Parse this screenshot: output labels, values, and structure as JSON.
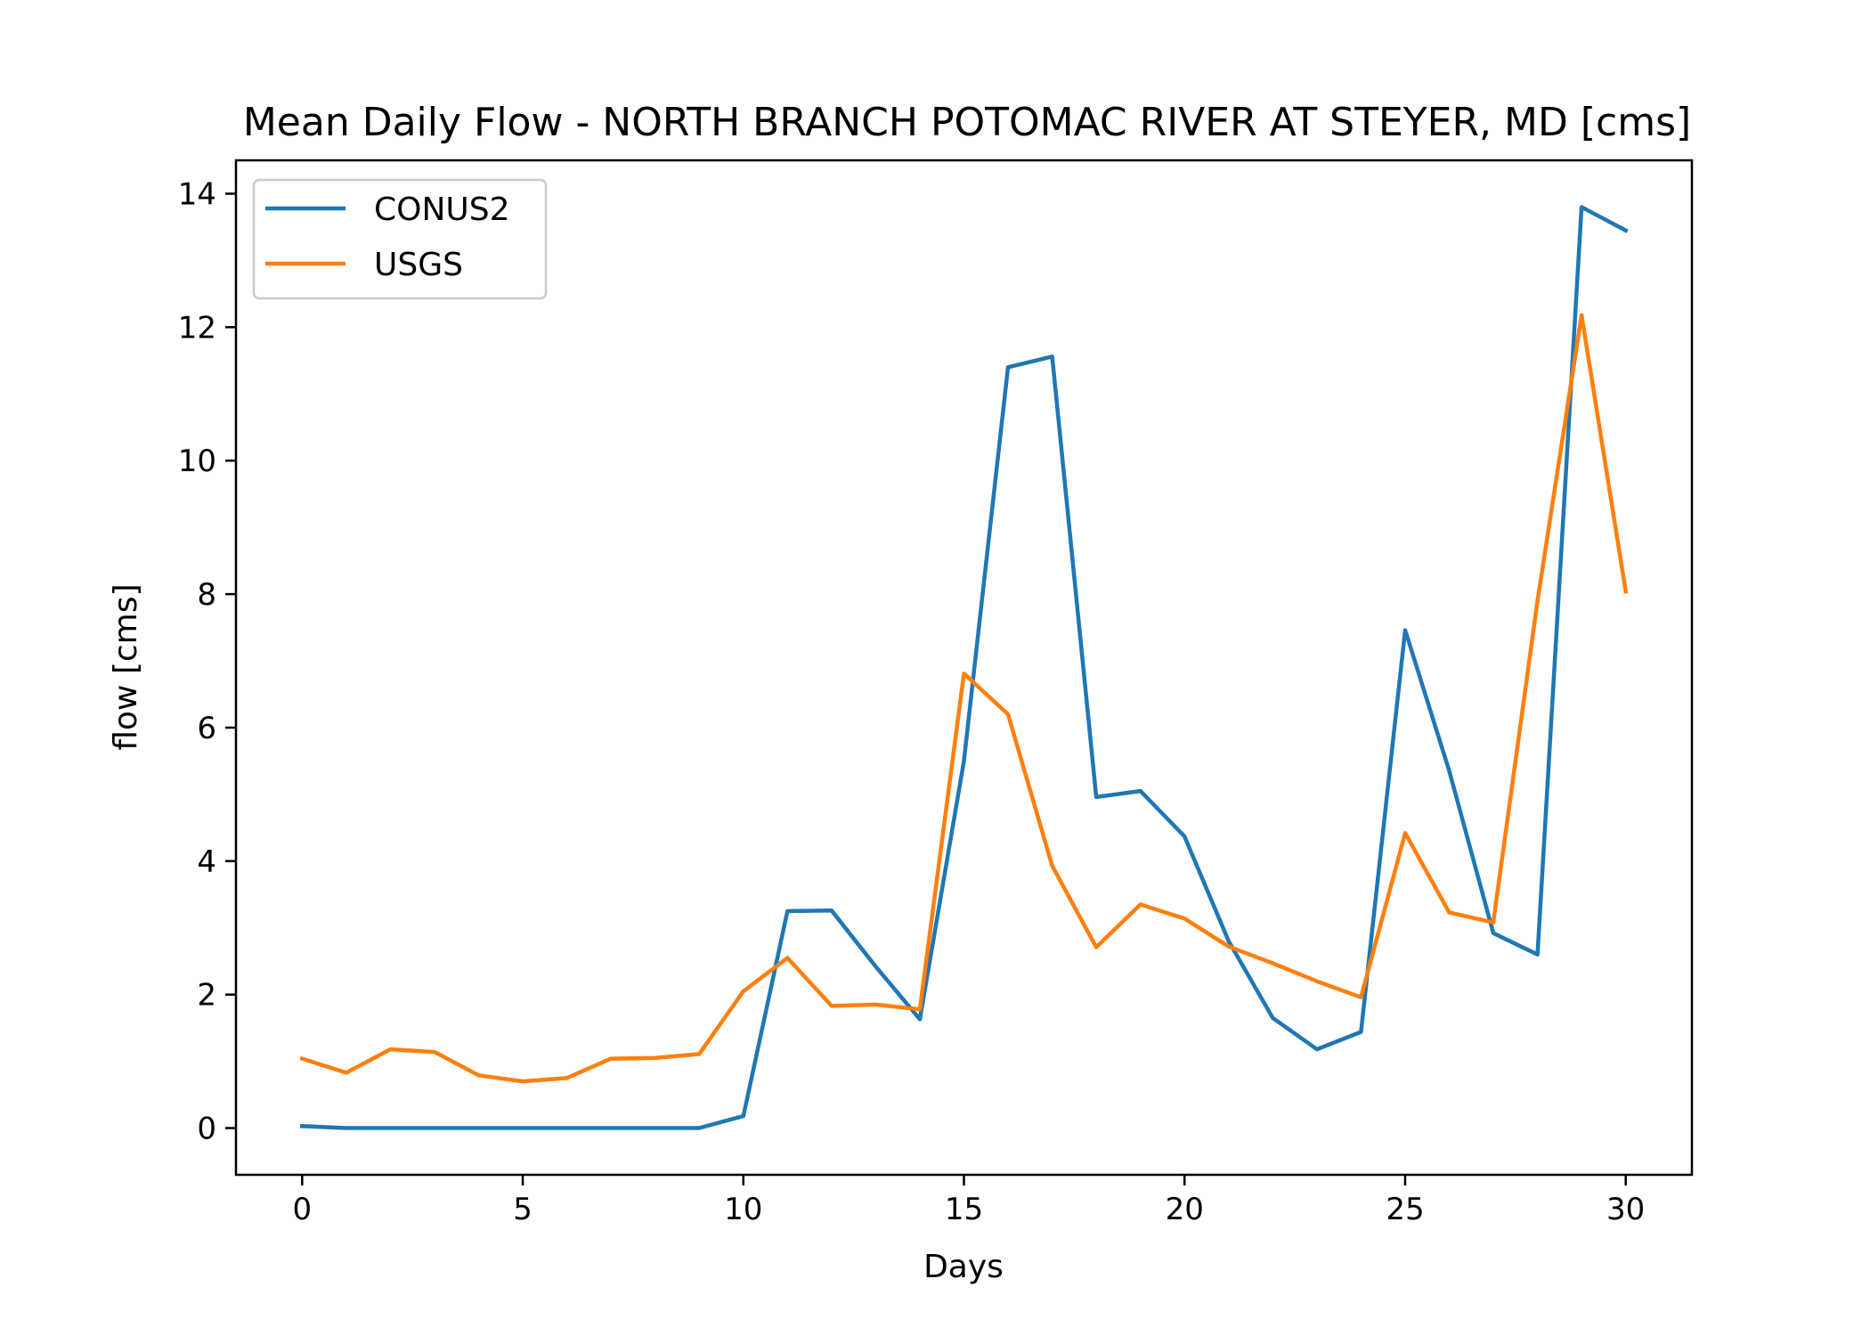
{
  "chart_data": {
    "type": "line",
    "title": "Mean Daily Flow - NORTH BRANCH POTOMAC RIVER AT STEYER, MD [cms]",
    "xlabel": "Days",
    "ylabel": "flow [cms]",
    "xlim": [
      -1.5,
      31.5
    ],
    "ylim": [
      -0.7,
      14.5
    ],
    "xticks": [
      0,
      5,
      10,
      15,
      20,
      25,
      30
    ],
    "yticks": [
      0,
      2,
      4,
      6,
      8,
      10,
      12,
      14
    ],
    "grid": false,
    "legend_position": "top-left",
    "x": [
      0,
      1,
      2,
      3,
      4,
      5,
      6,
      7,
      8,
      9,
      10,
      11,
      12,
      13,
      14,
      15,
      16,
      17,
      18,
      19,
      20,
      21,
      22,
      23,
      24,
      25,
      26,
      27,
      28,
      29,
      30
    ],
    "series": [
      {
        "name": "CONUS2",
        "color": "#1f77b4",
        "values": [
          0.03,
          0.0,
          0.0,
          0.0,
          0.0,
          0.0,
          0.0,
          0.0,
          0.0,
          0.0,
          0.18,
          3.25,
          3.26,
          2.42,
          1.63,
          5.5,
          11.4,
          11.56,
          4.96,
          5.05,
          4.37,
          2.8,
          1.65,
          1.18,
          1.44,
          7.46,
          5.35,
          2.92,
          2.6,
          13.8,
          13.45
        ]
      },
      {
        "name": "USGS",
        "color": "#ff7f0e",
        "values": [
          1.04,
          0.83,
          1.18,
          1.14,
          0.79,
          0.7,
          0.75,
          1.04,
          1.05,
          1.11,
          2.05,
          2.55,
          1.83,
          1.85,
          1.78,
          6.81,
          6.2,
          3.93,
          2.71,
          3.35,
          3.14,
          2.72,
          2.47,
          2.2,
          1.96,
          4.42,
          3.23,
          3.08,
          7.9,
          12.18,
          8.04
        ]
      }
    ]
  }
}
